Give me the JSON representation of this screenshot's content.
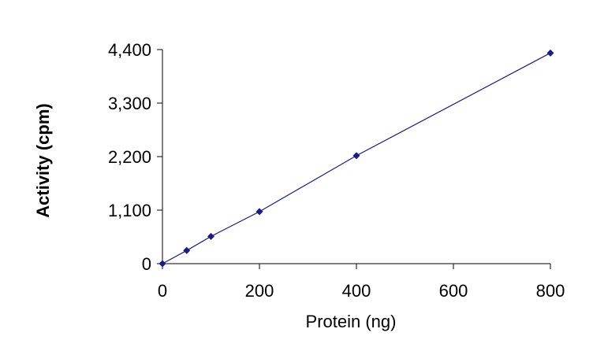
{
  "chart_data": {
    "type": "line",
    "title": "",
    "xlabel": "Protein (ng)",
    "ylabel": "Activity (cpm)",
    "xlim": [
      0,
      800
    ],
    "ylim": [
      0,
      4400
    ],
    "x_ticks": [
      0,
      200,
      400,
      600,
      800
    ],
    "x_tick_labels": [
      "0",
      "200",
      "400",
      "600",
      "800"
    ],
    "y_ticks": [
      0,
      1100,
      2200,
      3300,
      4400
    ],
    "y_tick_labels": [
      "0",
      "1,100",
      "2,200",
      "3,300",
      "4,400"
    ],
    "grid": false,
    "legend": "none",
    "series": [
      {
        "color": "#1a1a8c",
        "marker": "diamond",
        "x": [
          0,
          50,
          100,
          200,
          400,
          800
        ],
        "y": [
          0,
          270,
          560,
          1070,
          2220,
          4330
        ]
      }
    ]
  }
}
